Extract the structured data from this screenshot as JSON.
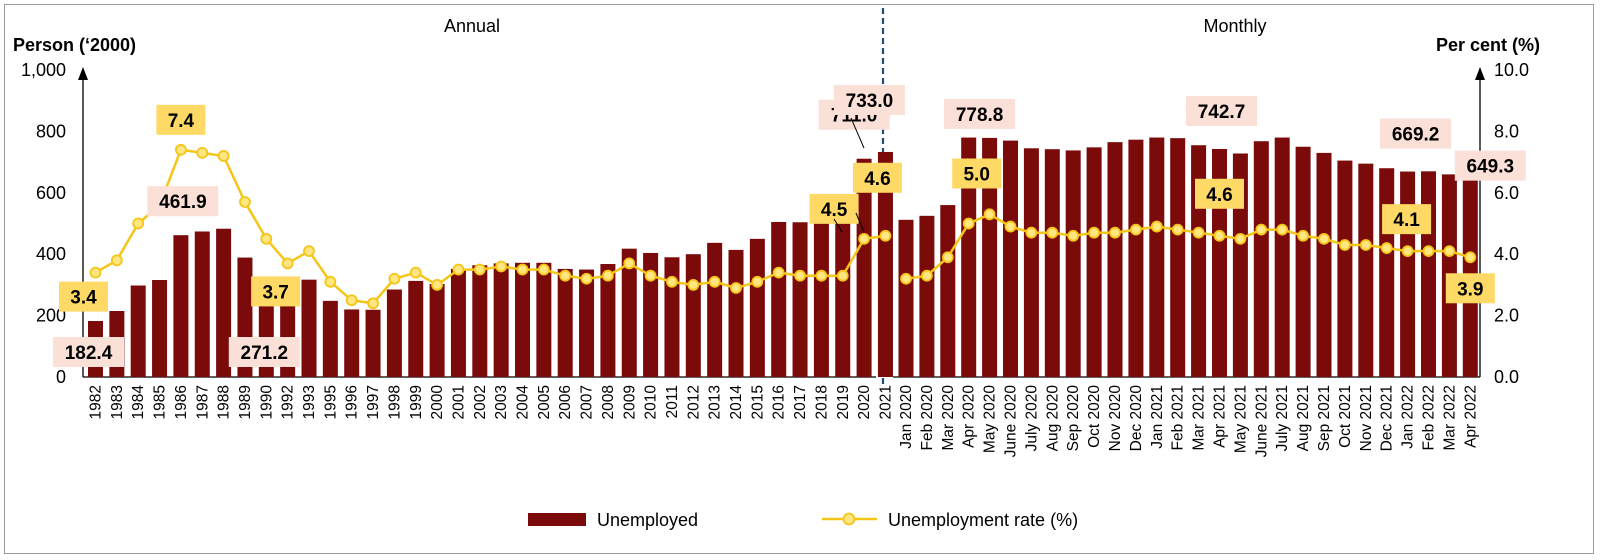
{
  "chart_data": {
    "type": "bar",
    "panels": [
      "Annual",
      "Monthly"
    ],
    "y_left": {
      "title": "Person (‘2000)",
      "ticks": [
        "0",
        "200",
        "400",
        "600",
        "800",
        "1,000"
      ],
      "range": [
        0,
        1000
      ]
    },
    "y_right": {
      "title": "Per cent (%)",
      "ticks": [
        "0.0",
        "2.0",
        "4.0",
        "6.0",
        "8.0",
        "10.0"
      ],
      "range": [
        0,
        10
      ]
    },
    "categories": [
      "1982",
      "1983",
      "1984",
      "1985",
      "1986",
      "1987",
      "1988",
      "1989",
      "1990",
      "1992",
      "1993",
      "1995",
      "1996",
      "1997",
      "1998",
      "1999",
      "2000",
      "2001",
      "2002",
      "2003",
      "2004",
      "2005",
      "2006",
      "2007",
      "2008",
      "2009",
      "2010",
      "2011",
      "2012",
      "2013",
      "2014",
      "2015",
      "2016",
      "2017",
      "2018",
      "2019",
      "2020",
      "2021",
      "Jan 2020",
      "Feb 2020",
      "Mar 2020",
      "Apr 2020",
      "May 2020",
      "June 2020",
      "July 2020",
      "Aug 2020",
      "Sep 2020",
      "Oct 2020",
      "Nov 2020",
      "Dec 2020",
      "Jan 2021",
      "Feb 2021",
      "Mar 2021",
      "Apr 2021",
      "May 2021",
      "June 2021",
      "July 2021",
      "Aug 2021",
      "Sep 2021",
      "Oct 2021",
      "Nov 2021",
      "Dec 2021",
      "Jan 2022",
      "Feb 2022",
      "Mar 2022",
      "Apr 2022"
    ],
    "annual_count": 38,
    "series": [
      {
        "name": "Unemployed",
        "kind": "bar",
        "axis": "left",
        "color": "#7b0a0a",
        "values": [
          182.4,
          215,
          298,
          316,
          461.9,
          474,
          483,
          389,
          271.2,
          296,
          317,
          248,
          220,
          219,
          285,
          313,
          303,
          352,
          364,
          370,
          372,
          372,
          352,
          350,
          368,
          418,
          404,
          390,
          400,
          437,
          414,
          450,
          505,
          504,
          504,
          520,
          711.0,
          733.0,
          512,
          525,
          560,
          780,
          778.8,
          770,
          745,
          742,
          738,
          748,
          765,
          773,
          780,
          778,
          755,
          742.7,
          728,
          768,
          780,
          750,
          730,
          705,
          695,
          680,
          669.2,
          670,
          660,
          649.3
        ]
      },
      {
        "name": "Unemployment rate (%)",
        "kind": "line",
        "axis": "right",
        "color": "#f5c518",
        "values": [
          3.4,
          3.8,
          5.0,
          5.6,
          7.4,
          7.3,
          7.2,
          5.7,
          4.5,
          3.7,
          4.1,
          3.1,
          2.5,
          2.4,
          3.2,
          3.4,
          3.0,
          3.5,
          3.5,
          3.6,
          3.5,
          3.5,
          3.3,
          3.2,
          3.3,
          3.7,
          3.3,
          3.1,
          3.0,
          3.1,
          2.9,
          3.1,
          3.4,
          3.3,
          3.3,
          3.3,
          4.5,
          4.6,
          3.2,
          3.3,
          3.9,
          5.0,
          5.3,
          4.9,
          4.7,
          4.7,
          4.6,
          4.7,
          4.7,
          4.8,
          4.9,
          4.8,
          4.7,
          4.6,
          4.5,
          4.8,
          4.8,
          4.6,
          4.5,
          4.3,
          4.3,
          4.2,
          4.1,
          4.1,
          4.1,
          3.9
        ]
      }
    ],
    "annotations": [
      {
        "series": 0,
        "index": 0,
        "text": "182.4"
      },
      {
        "series": 0,
        "index": 4,
        "text": "461.9"
      },
      {
        "series": 0,
        "index": 8,
        "text": "271.2"
      },
      {
        "series": 0,
        "index": 36,
        "text": "711.0"
      },
      {
        "series": 0,
        "index": 37,
        "text": "733.0"
      },
      {
        "series": 0,
        "index": 42,
        "text": "778.8"
      },
      {
        "series": 0,
        "index": 53,
        "text": "742.7"
      },
      {
        "series": 0,
        "index": 62,
        "text": "669.2"
      },
      {
        "series": 0,
        "index": 65,
        "text": "649.3"
      },
      {
        "series": 1,
        "index": 0,
        "text": "3.4"
      },
      {
        "series": 1,
        "index": 4,
        "text": "7.4"
      },
      {
        "series": 1,
        "index": 9,
        "text": "3.7"
      },
      {
        "series": 1,
        "index": 36,
        "text": "4.5"
      },
      {
        "series": 1,
        "index": 37,
        "text": "4.6"
      },
      {
        "series": 1,
        "index": 41,
        "text": "5.0"
      },
      {
        "series": 1,
        "index": 53,
        "text": "4.6"
      },
      {
        "series": 1,
        "index": 62,
        "text": "4.1"
      },
      {
        "series": 1,
        "index": 65,
        "text": "3.9"
      }
    ],
    "legend": {
      "position": "bottom",
      "items": [
        "Unemployed",
        "Unemployment rate (%)"
      ]
    },
    "colors": {
      "bar": "#7b0a0a",
      "line": "#f5c518",
      "marker_fill": "#ffe680",
      "bar_label_bg": "#fbe0d8",
      "line_label_bg": "#ffd966",
      "divider": "#1f4e79"
    }
  }
}
